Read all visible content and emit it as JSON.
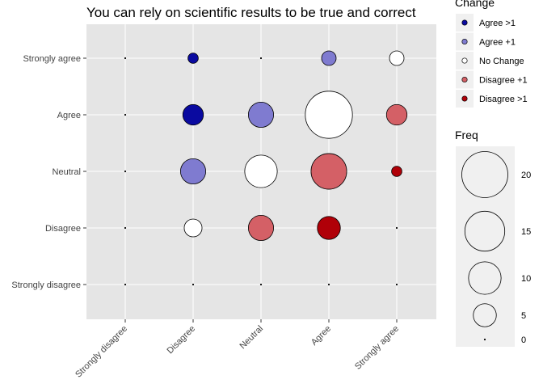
{
  "chart_data": {
    "type": "scatter",
    "title": "You can rely on scientific results to be true and correct",
    "xlabel": "",
    "ylabel": "",
    "x_categories": [
      "Strongly disagree",
      "Disagree",
      "Neutral",
      "Agree",
      "Strongly agree"
    ],
    "y_categories": [
      "Strongly disagree",
      "Disagree",
      "Neutral",
      "Agree",
      "Strongly agree"
    ],
    "grid": true,
    "points": [
      {
        "x": "Strongly disagree",
        "y": "Strongly disagree",
        "freq": 0,
        "change": "No Change"
      },
      {
        "x": "Strongly disagree",
        "y": "Disagree",
        "freq": 0,
        "change": "No Change"
      },
      {
        "x": "Strongly disagree",
        "y": "Neutral",
        "freq": 0,
        "change": "No Change"
      },
      {
        "x": "Strongly disagree",
        "y": "Agree",
        "freq": 0,
        "change": "No Change"
      },
      {
        "x": "Strongly disagree",
        "y": "Strongly agree",
        "freq": 0,
        "change": "No Change"
      },
      {
        "x": "Disagree",
        "y": "Strongly disagree",
        "freq": 0,
        "change": "No Change"
      },
      {
        "x": "Disagree",
        "y": "Disagree",
        "freq": 3,
        "change": "No Change"
      },
      {
        "x": "Disagree",
        "y": "Neutral",
        "freq": 6,
        "change": "Agree +1"
      },
      {
        "x": "Disagree",
        "y": "Agree",
        "freq": 4,
        "change": "Agree >1"
      },
      {
        "x": "Disagree",
        "y": "Strongly agree",
        "freq": 1,
        "change": "Agree >1"
      },
      {
        "x": "Neutral",
        "y": "Strongly disagree",
        "freq": 0,
        "change": "No Change"
      },
      {
        "x": "Neutral",
        "y": "Disagree",
        "freq": 6,
        "change": "Disagree +1"
      },
      {
        "x": "Neutral",
        "y": "Neutral",
        "freq": 10,
        "change": "No Change"
      },
      {
        "x": "Neutral",
        "y": "Agree",
        "freq": 6,
        "change": "Agree +1"
      },
      {
        "x": "Neutral",
        "y": "Strongly agree",
        "freq": 0,
        "change": "No Change"
      },
      {
        "x": "Agree",
        "y": "Strongly disagree",
        "freq": 0,
        "change": "No Change"
      },
      {
        "x": "Agree",
        "y": "Disagree",
        "freq": 5,
        "change": "Disagree >1"
      },
      {
        "x": "Agree",
        "y": "Neutral",
        "freq": 12,
        "change": "Disagree +1"
      },
      {
        "x": "Agree",
        "y": "Agree",
        "freq": 21,
        "change": "No Change"
      },
      {
        "x": "Agree",
        "y": "Strongly agree",
        "freq": 2,
        "change": "Agree +1"
      },
      {
        "x": "Strongly agree",
        "y": "Strongly disagree",
        "freq": 0,
        "change": "No Change"
      },
      {
        "x": "Strongly agree",
        "y": "Disagree",
        "freq": 0,
        "change": "No Change"
      },
      {
        "x": "Strongly agree",
        "y": "Neutral",
        "freq": 1,
        "change": "Disagree >1"
      },
      {
        "x": "Strongly agree",
        "y": "Agree",
        "freq": 4,
        "change": "Disagree +1"
      },
      {
        "x": "Strongly agree",
        "y": "Strongly agree",
        "freq": 2,
        "change": "No Change"
      }
    ],
    "legend_change": {
      "title": "Change",
      "placement": "right",
      "entries": [
        {
          "label": "Agree >1",
          "color": "#0a0aa0"
        },
        {
          "label": "Agree +1",
          "color": "#7f7bd0"
        },
        {
          "label": "No Change",
          "color": "#ffffff"
        },
        {
          "label": "Disagree +1",
          "color": "#d46066"
        },
        {
          "label": "Disagree >1",
          "color": "#b00008"
        }
      ]
    },
    "legend_freq": {
      "title": "Freq",
      "placement": "right",
      "values": [
        20,
        15,
        10,
        5,
        0
      ]
    },
    "colors": {
      "panel": "#e5e5e5",
      "grid": "#ffffff",
      "legend_key": "#f0f0f0"
    }
  }
}
